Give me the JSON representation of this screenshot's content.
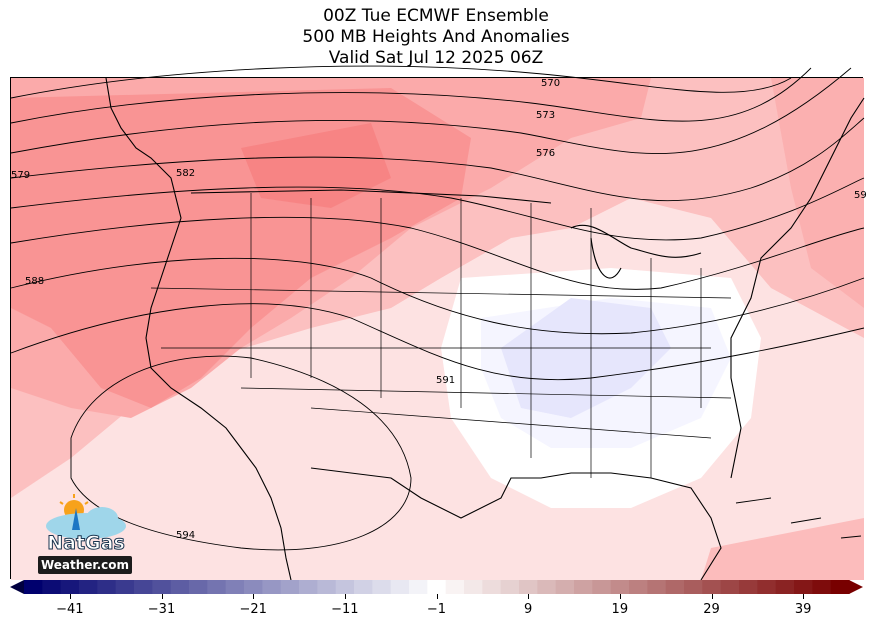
{
  "title": {
    "line1": "00Z Tue ECMWF Ensemble",
    "line2": "500 MB Heights And Anomalies",
    "line3": "Valid Sat Jul 12 2025 06Z"
  },
  "map": {
    "region": "Continental United States",
    "contour_labels": [
      "570",
      "573",
      "576",
      "579",
      "582",
      "588",
      "591",
      "594",
      "59"
    ],
    "anomaly_colors": {
      "warm_strong": "#fa8c8c",
      "warm_mid": "#fcb2b2",
      "warm_light": "#fdd3d3",
      "warm_faint": "#fee6e6",
      "neutral": "#ffffff",
      "cool_faint": "#f4f4ff",
      "cool_light": "#e4e4fb"
    }
  },
  "colorbar": {
    "tick_labels": [
      "−41",
      "−31",
      "−21",
      "−11",
      "−1",
      "9",
      "19",
      "29",
      "39"
    ],
    "min": -46,
    "max": 44
  },
  "logo": {
    "line1": "NatGas",
    "line2": "Weather.com"
  }
}
